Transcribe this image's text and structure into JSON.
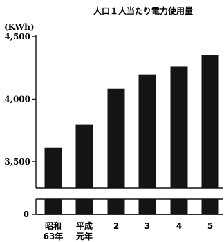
{
  "chart_data": {
    "type": "bar",
    "title": "人口１人当たり電力使用量",
    "unit_label": "(KWh)",
    "categories": [
      [
        "昭和",
        "63年"
      ],
      [
        "平成",
        "元年"
      ],
      [
        "2"
      ],
      [
        "3"
      ],
      [
        "4"
      ],
      [
        "5"
      ]
    ],
    "values": [
      3612,
      3795,
      4087,
      4198,
      4260,
      4355
    ],
    "ylim": [
      3500,
      4500
    ],
    "yticks": [
      {
        "value": 3500,
        "label": "3,500"
      },
      {
        "value": 4000,
        "label": "4,000"
      },
      {
        "value": 4500,
        "label": "4,500"
      }
    ],
    "axis_break": true,
    "zero_label": "0",
    "grid": false,
    "colors": {
      "bar": "#141414",
      "axis": "#111111",
      "background": "#ffffff"
    }
  }
}
